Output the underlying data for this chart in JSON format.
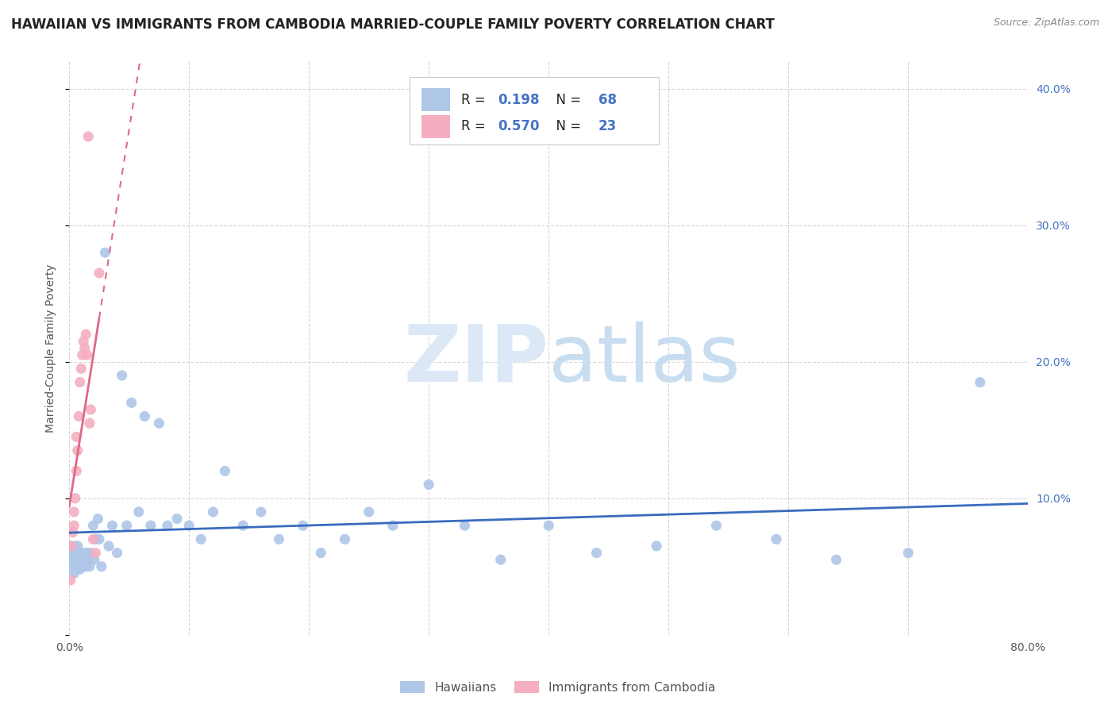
{
  "title": "HAWAIIAN VS IMMIGRANTS FROM CAMBODIA MARRIED-COUPLE FAMILY POVERTY CORRELATION CHART",
  "source": "Source: ZipAtlas.com",
  "ylabel": "Married-Couple Family Poverty",
  "xlim": [
    0.0,
    0.8
  ],
  "ylim": [
    0.0,
    0.42
  ],
  "hawaiians_R": 0.198,
  "hawaiians_N": 68,
  "cambodia_R": 0.57,
  "cambodia_N": 23,
  "hawaiians_color": "#aec6e8",
  "cambodia_color": "#f4aec0",
  "hawaiians_line_color": "#3a6bbf",
  "cambodia_line_color": "#e06888",
  "cambodia_line_style": "--",
  "legend_label_hawaiians": "Hawaiians",
  "legend_label_cambodia": "Immigrants from Cambodia",
  "title_fontsize": 12,
  "axis_label_fontsize": 10,
  "tick_fontsize": 10,
  "hawaiians_x": [
    0.001,
    0.002,
    0.003,
    0.003,
    0.004,
    0.004,
    0.005,
    0.005,
    0.006,
    0.006,
    0.007,
    0.007,
    0.008,
    0.008,
    0.009,
    0.009,
    0.01,
    0.01,
    0.011,
    0.012,
    0.013,
    0.014,
    0.015,
    0.016,
    0.017,
    0.018,
    0.02,
    0.021,
    0.022,
    0.024,
    0.025,
    0.027,
    0.03,
    0.033,
    0.036,
    0.04,
    0.044,
    0.048,
    0.052,
    0.058,
    0.063,
    0.068,
    0.075,
    0.082,
    0.09,
    0.1,
    0.11,
    0.12,
    0.13,
    0.145,
    0.16,
    0.175,
    0.195,
    0.21,
    0.23,
    0.25,
    0.27,
    0.3,
    0.33,
    0.36,
    0.4,
    0.44,
    0.49,
    0.54,
    0.59,
    0.64,
    0.7,
    0.76
  ],
  "hawaiians_y": [
    0.065,
    0.055,
    0.06,
    0.05,
    0.06,
    0.045,
    0.065,
    0.055,
    0.05,
    0.06,
    0.055,
    0.065,
    0.05,
    0.06,
    0.055,
    0.048,
    0.06,
    0.055,
    0.05,
    0.055,
    0.06,
    0.05,
    0.06,
    0.055,
    0.05,
    0.06,
    0.08,
    0.055,
    0.07,
    0.085,
    0.07,
    0.05,
    0.28,
    0.065,
    0.08,
    0.06,
    0.19,
    0.08,
    0.17,
    0.09,
    0.16,
    0.08,
    0.155,
    0.08,
    0.085,
    0.08,
    0.07,
    0.09,
    0.12,
    0.08,
    0.09,
    0.07,
    0.08,
    0.06,
    0.07,
    0.09,
    0.08,
    0.11,
    0.08,
    0.055,
    0.08,
    0.06,
    0.065,
    0.08,
    0.07,
    0.055,
    0.06,
    0.185
  ],
  "cambodia_x": [
    0.001,
    0.002,
    0.003,
    0.004,
    0.004,
    0.005,
    0.006,
    0.006,
    0.007,
    0.008,
    0.009,
    0.01,
    0.011,
    0.012,
    0.013,
    0.014,
    0.015,
    0.016,
    0.017,
    0.018,
    0.02,
    0.022,
    0.025
  ],
  "cambodia_y": [
    0.04,
    0.065,
    0.075,
    0.08,
    0.09,
    0.1,
    0.12,
    0.145,
    0.135,
    0.16,
    0.185,
    0.195,
    0.205,
    0.215,
    0.21,
    0.22,
    0.205,
    0.365,
    0.155,
    0.165,
    0.07,
    0.06,
    0.265
  ]
}
